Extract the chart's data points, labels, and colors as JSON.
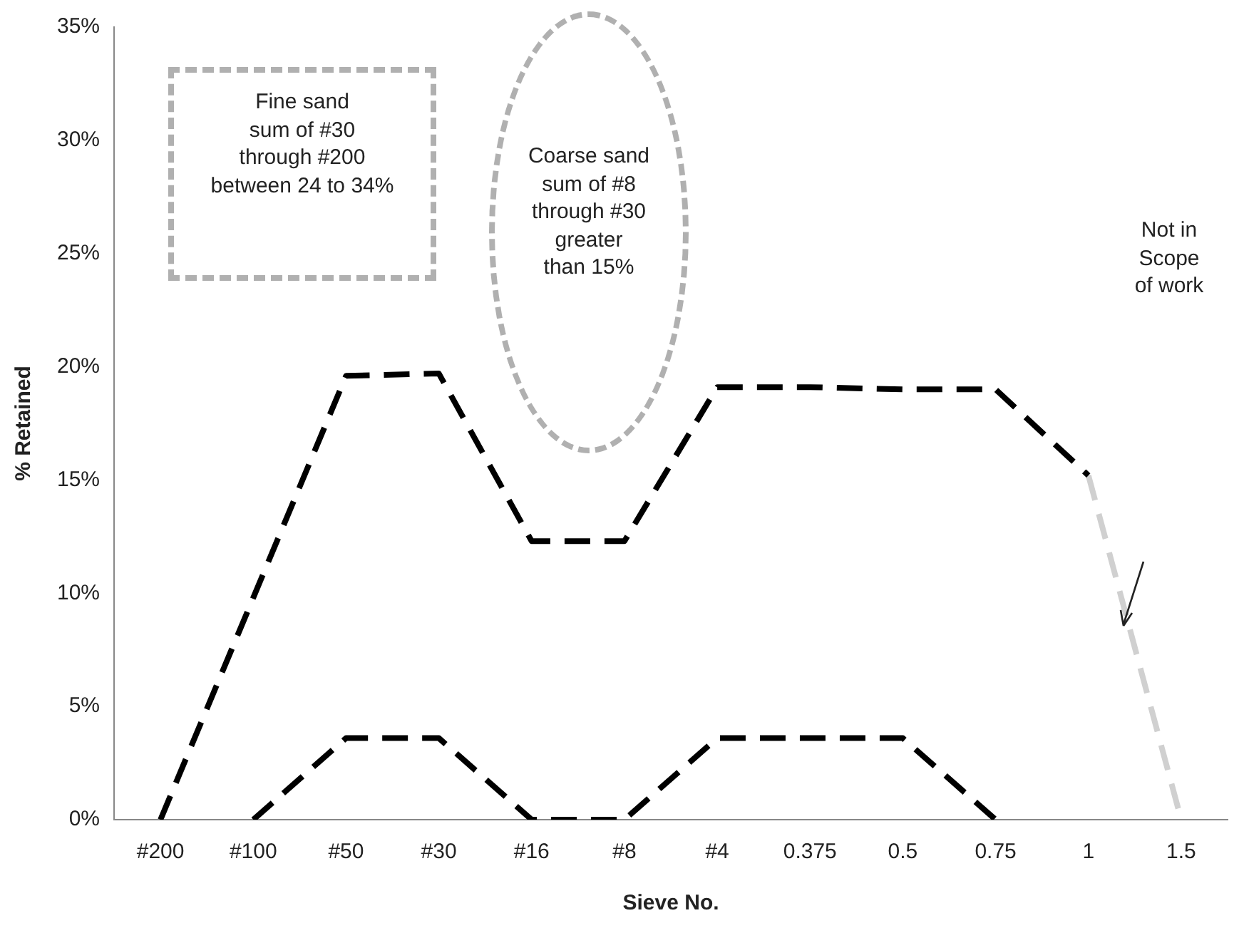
{
  "chart_data": {
    "type": "line",
    "xlabel": "Sieve No.",
    "ylabel": "% Retained",
    "categories": [
      "#200",
      "#100",
      "#50",
      "#30",
      "#16",
      "#8",
      "#4",
      "0.375",
      "0.5",
      "0.75",
      "1",
      "1.5"
    ],
    "series": [
      {
        "color": "#000000",
        "line_style": "dashed",
        "values": [
          0,
          9.8,
          19.6,
          19.7,
          12.3,
          12.3,
          19.1,
          19.1,
          19.0,
          19.0,
          15.2,
          null
        ]
      },
      {
        "color": "#000000",
        "line_style": "dashed",
        "values": [
          null,
          0,
          3.6,
          3.6,
          0,
          0,
          3.6,
          3.6,
          3.6,
          0,
          null,
          null
        ]
      },
      {
        "color": "#d0d0d0",
        "line_style": "dashed",
        "values": [
          null,
          null,
          null,
          null,
          null,
          null,
          null,
          null,
          null,
          null,
          15.2,
          0
        ]
      }
    ],
    "ylim": [
      0,
      35
    ],
    "yticks": [
      {
        "value": 0,
        "label": "0%"
      },
      {
        "value": 5,
        "label": "5%"
      },
      {
        "value": 10,
        "label": "10%"
      },
      {
        "value": 15,
        "label": "15%"
      },
      {
        "value": 20,
        "label": "20%"
      },
      {
        "value": 25,
        "label": "25%"
      },
      {
        "value": 30,
        "label": "30%"
      },
      {
        "value": 35,
        "label": "35%"
      }
    ],
    "grid": false,
    "legend": false,
    "marker": "none",
    "annotations": [
      "Fine sand\nsum of #30\nthrough #200\nbetween 24 to 34%",
      "Coarse sand\nsum of #8\nthrough #30\ngreater\nthan 15%",
      "Not in\nScope\nof work"
    ]
  }
}
